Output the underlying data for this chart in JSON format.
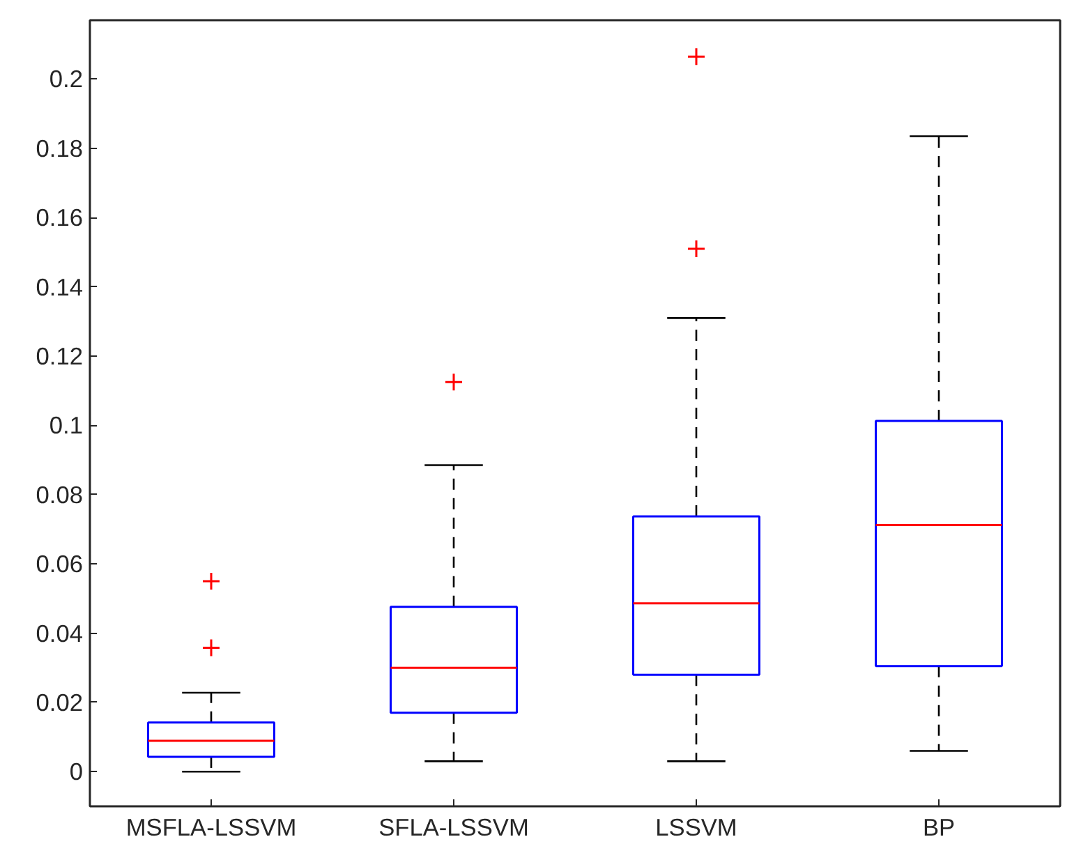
{
  "chart_data": {
    "type": "box",
    "categories": [
      "MSFLA-LSSVM",
      "SFLA-LSSVM",
      "LSSVM",
      "BP"
    ],
    "series": [
      {
        "color": "#0000ff",
        "boxes": [
          {
            "low": 0,
            "q1": 0.0043,
            "median": 0.0089,
            "q3": 0.0142,
            "high": 0.0228,
            "outliers": [
              0.0358,
              0.055
            ]
          },
          {
            "low": 0.003,
            "q1": 0.017,
            "median": 0.03,
            "q3": 0.0476,
            "high": 0.0885,
            "outliers": [
              0.1125
            ]
          },
          {
            "low": 0.003,
            "q1": 0.028,
            "median": 0.0486,
            "q3": 0.0737,
            "high": 0.131,
            "outliers": [
              0.151,
              0.2065
            ]
          },
          {
            "low": 0.006,
            "q1": 0.0305,
            "median": 0.0712,
            "q3": 0.1013,
            "high": 0.1835
          }
        ]
      }
    ],
    "marker": "cross",
    "ylim": [
      -0.01,
      0.217
    ],
    "yticks": [
      0,
      0.02,
      0.04,
      0.06,
      0.08,
      0.1,
      0.12,
      0.14,
      0.16,
      0.18,
      0.2
    ]
  }
}
